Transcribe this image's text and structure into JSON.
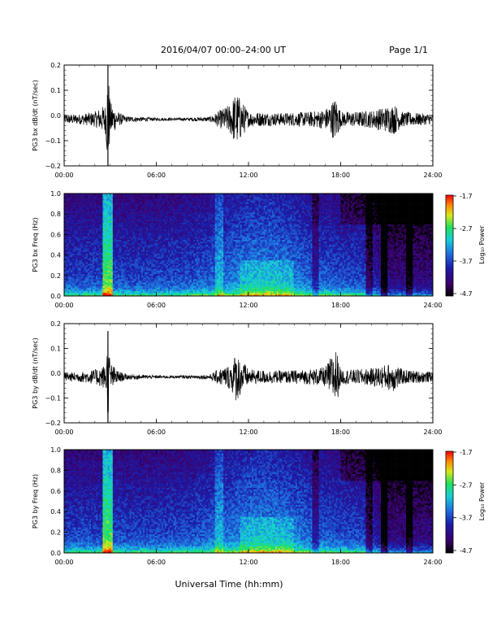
{
  "header": {
    "title": "2016/04/07   00:00–24:00 UT",
    "page": "Page 1/1"
  },
  "time_ticks": [
    "00:00",
    "06:00",
    "12:00",
    "18:00",
    "24:00"
  ],
  "xlabel": "Universal Time (hh:mm)",
  "colorbar": {
    "tick_labels": [
      "-1.7",
      "-2.7",
      "-3.7",
      "-4.7"
    ],
    "label": "Log₁₀ Power"
  },
  "panels": [
    {
      "ylabel": "PG3 bx dB/dt (nT/sec)",
      "yticks": [
        "0.2",
        "0.1",
        "0.0",
        "−0.1",
        "−0.2"
      ]
    },
    {
      "ylabel": "PG3 bx Freq (Hz)",
      "yticks": [
        "1.0",
        "0.8",
        "0.6",
        "0.4",
        "0.2",
        "0.0"
      ]
    },
    {
      "ylabel": "PG3 by dB/dt (nT/sec)",
      "yticks": [
        "0.2",
        "0.1",
        "0.0",
        "−0.1",
        "−0.2"
      ]
    },
    {
      "ylabel": "PG3 by Freq (Hz)",
      "yticks": [
        "1.0",
        "0.8",
        "0.6",
        "0.4",
        "0.2",
        "0.0"
      ]
    }
  ],
  "chart_data": [
    {
      "type": "line",
      "ylabel": "PG3 bx dB/dt (nT/sec)",
      "xlim_hours": [
        0,
        24
      ],
      "ylim": [
        -0.2,
        0.2
      ],
      "baseline": -0.015,
      "activity_envelope": {
        "hours": [
          0,
          1,
          2,
          2.7,
          2.85,
          3.0,
          3.5,
          4,
          6,
          8,
          9.5,
          10,
          10.8,
          11.2,
          11.8,
          12,
          14,
          16,
          17,
          17.7,
          18,
          19,
          20,
          21.5,
          22,
          23,
          24
        ],
        "amplitude": [
          0.018,
          0.02,
          0.03,
          0.06,
          0.22,
          0.07,
          0.03,
          0.012,
          0.006,
          0.006,
          0.01,
          0.03,
          0.06,
          0.11,
          0.05,
          0.03,
          0.025,
          0.03,
          0.04,
          0.09,
          0.03,
          0.03,
          0.035,
          0.06,
          0.03,
          0.025,
          0.02
        ]
      },
      "max": 0.2,
      "min": -0.2
    },
    {
      "type": "heatmap",
      "ylabel": "PG3 bx Freq (Hz)",
      "xlim_hours": [
        0,
        24
      ],
      "ylim": [
        0,
        1.0
      ],
      "color_range": [
        -4.7,
        -1.7
      ],
      "colorbar_label": "Log₁₀ Power"
    },
    {
      "type": "line",
      "ylabel": "PG3 by dB/dt (nT/sec)",
      "xlim_hours": [
        0,
        24
      ],
      "ylim": [
        -0.2,
        0.2
      ],
      "baseline": -0.015,
      "activity_envelope": {
        "hours": [
          0,
          1,
          2,
          2.7,
          2.85,
          3.0,
          3.5,
          4,
          6,
          8,
          9.5,
          10,
          10.8,
          11.2,
          11.8,
          12,
          14,
          16,
          17,
          17.7,
          18,
          19,
          20,
          21.5,
          22,
          23,
          24
        ],
        "amplitude": [
          0.018,
          0.02,
          0.03,
          0.05,
          0.17,
          0.06,
          0.025,
          0.012,
          0.006,
          0.006,
          0.01,
          0.03,
          0.05,
          0.1,
          0.05,
          0.03,
          0.025,
          0.03,
          0.04,
          0.12,
          0.03,
          0.03,
          0.035,
          0.06,
          0.03,
          0.025,
          0.02
        ]
      },
      "max": 0.17,
      "min": -0.2
    },
    {
      "type": "heatmap",
      "ylabel": "PG3 by Freq (Hz)",
      "xlim_hours": [
        0,
        24
      ],
      "ylim": [
        0,
        1.0
      ],
      "color_range": [
        -4.7,
        -1.7
      ],
      "colorbar_label": "Log₁₀ Power"
    }
  ]
}
